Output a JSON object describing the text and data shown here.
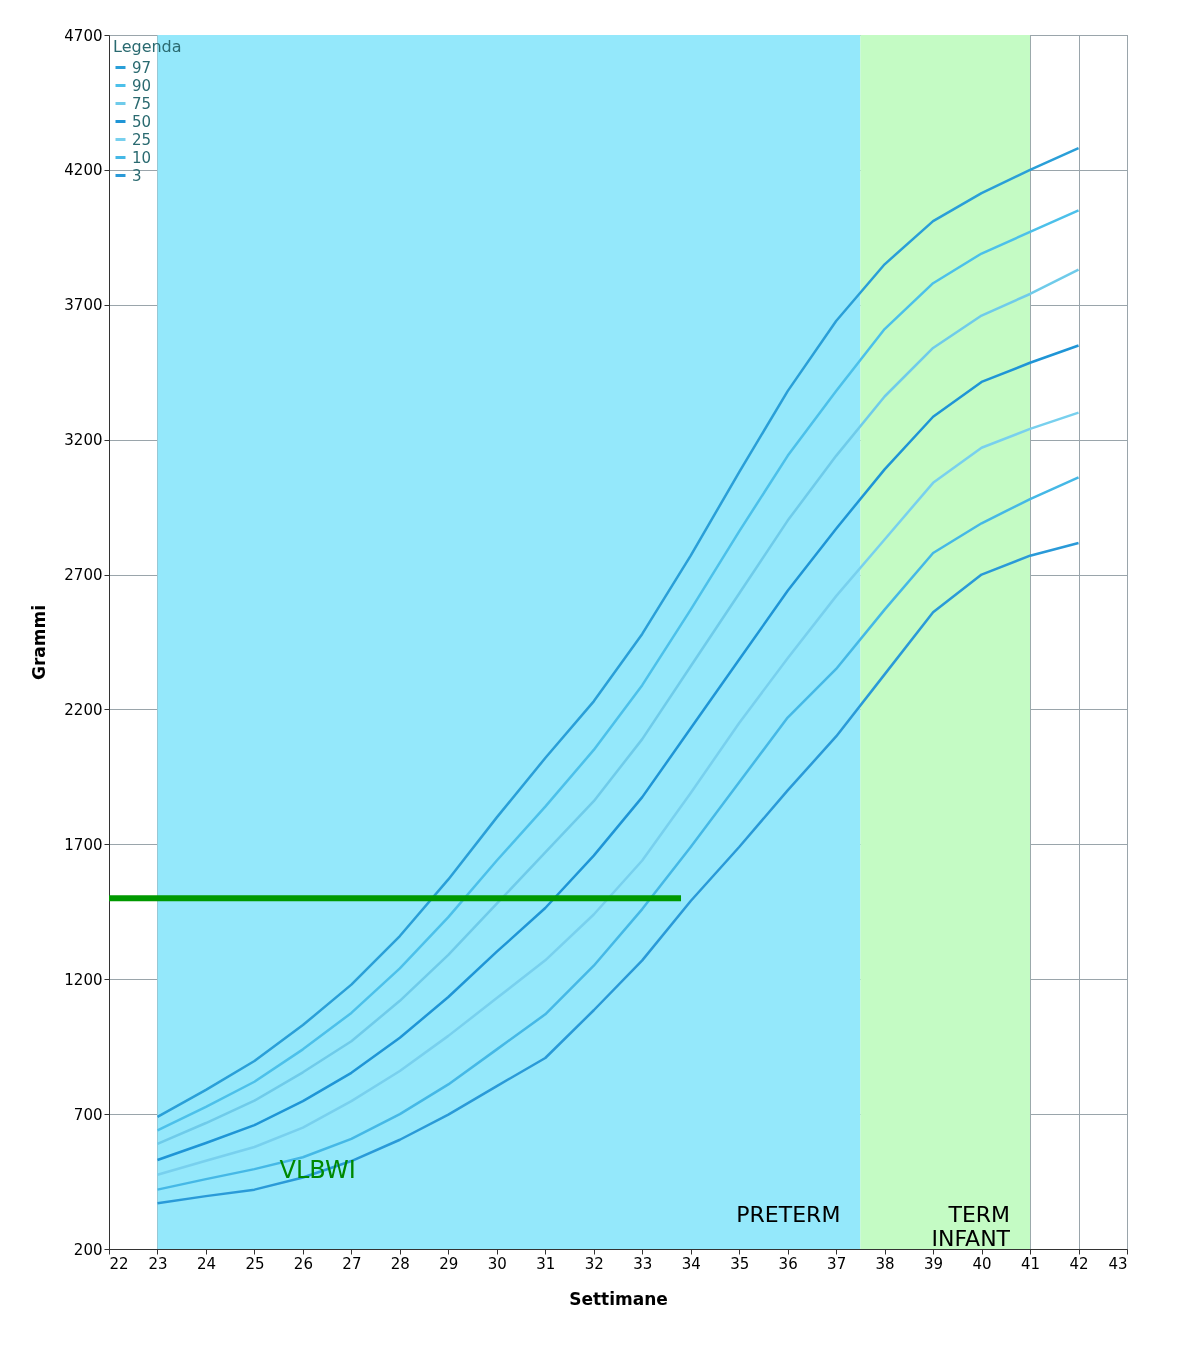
{
  "chart_data": {
    "type": "line",
    "xlabel": "Settimane",
    "ylabel": "Grammi",
    "legend_title": "Legenda",
    "legend": "top left",
    "grid": true,
    "x": [
      23,
      24,
      25,
      26,
      27,
      28,
      29,
      30,
      31,
      32,
      33,
      34,
      35,
      36,
      37,
      38,
      39,
      40,
      41,
      42
    ],
    "xlim": [
      22,
      43
    ],
    "xticks": [
      22,
      23,
      24,
      25,
      26,
      27,
      28,
      29,
      30,
      31,
      32,
      33,
      34,
      35,
      36,
      37,
      38,
      39,
      40,
      41,
      42,
      43
    ],
    "ylim": [
      200,
      4700
    ],
    "yticks": [
      200,
      700,
      1200,
      1700,
      2200,
      2700,
      3200,
      3700,
      4200,
      4700
    ],
    "series": [
      {
        "name": "97",
        "color": "#2a9fd8",
        "values": [
          690,
          790,
          897,
          1030,
          1180,
          1360,
          1570,
          1800,
          2020,
          2230,
          2480,
          2770,
          3080,
          3380,
          3640,
          3850,
          4010,
          4114,
          4200,
          4281
        ]
      },
      {
        "name": "90",
        "color": "#4cc0ea",
        "values": [
          640,
          727,
          820,
          940,
          1075,
          1240,
          1430,
          1640,
          1840,
          2050,
          2290,
          2570,
          2860,
          3140,
          3380,
          3610,
          3780,
          3890,
          3970,
          4050
        ]
      },
      {
        "name": "75",
        "color": "#6fcbea",
        "values": [
          590,
          667,
          750,
          855,
          970,
          1120,
          1290,
          1480,
          1670,
          1860,
          2090,
          2360,
          2630,
          2900,
          3140,
          3360,
          3540,
          3660,
          3740,
          3830
        ]
      },
      {
        "name": "50",
        "color": "#1f95d6",
        "values": [
          530,
          593,
          659,
          748,
          853,
          983,
          1134,
          1302,
          1464,
          1658,
          1875,
          2130,
          2385,
          2640,
          2870,
          3090,
          3285,
          3414,
          3485,
          3549
        ]
      },
      {
        "name": "25",
        "color": "#78d0ee",
        "values": [
          475,
          527,
          578,
          650,
          748,
          860,
          990,
          1130,
          1270,
          1440,
          1640,
          1890,
          2150,
          2390,
          2620,
          2830,
          3040,
          3170,
          3240,
          3300
        ]
      },
      {
        "name": "10",
        "color": "#45b8e6",
        "values": [
          420,
          459,
          496,
          540,
          608,
          700,
          810,
          940,
          1070,
          1250,
          1460,
          1690,
          1930,
          2170,
          2350,
          2570,
          2780,
          2890,
          2980,
          3060
        ]
      },
      {
        "name": "3",
        "color": "#2a9ad8",
        "values": [
          370,
          396,
          420,
          465,
          526,
          605,
          698,
          804,
          908,
          1085,
          1270,
          1490,
          1690,
          1900,
          2100,
          2330,
          2560,
          2700,
          2770,
          2817
        ]
      },
      {
        "type": "line",
        "color": "#009900",
        "x": [
          22,
          33.8
        ],
        "values": [
          1500,
          1500
        ]
      }
    ],
    "bands": [
      {
        "axis": "x",
        "from": 23,
        "to": 37.5,
        "label": "PRETERM",
        "color": "#94e8fb"
      },
      {
        "axis": "x",
        "from": 37.5,
        "to": 41,
        "label": "TERM INFANT",
        "color": "#c4fbc4"
      }
    ],
    "annotations": [
      "VLBWI"
    ]
  }
}
